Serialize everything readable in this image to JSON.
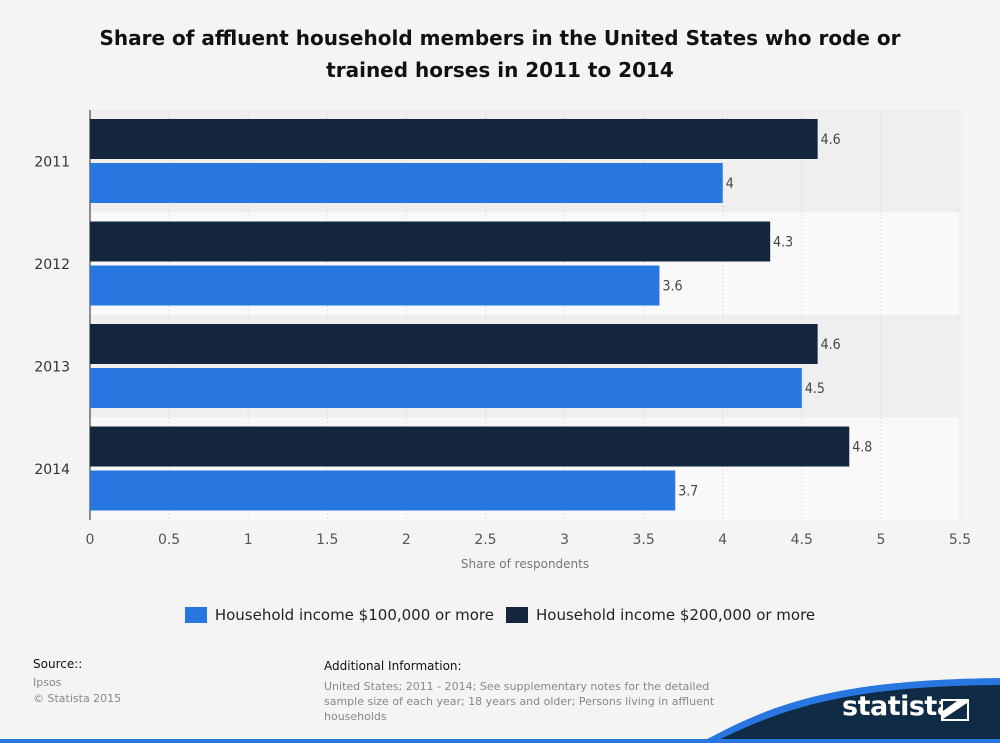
{
  "title": "Share of affluent household members in the United States who rode or trained horses in 2011 to 2014",
  "chart_data": {
    "type": "bar",
    "orientation": "horizontal",
    "categories": [
      "2011",
      "2012",
      "2013",
      "2014"
    ],
    "series": [
      {
        "name": "Household income $200,000 or more",
        "values": [
          4.6,
          4.3,
          4.6,
          4.8
        ],
        "color": "#13263e"
      },
      {
        "name": "Household income $100,000 or more",
        "values": [
          4.0,
          3.6,
          4.5,
          3.7
        ],
        "color": "#2877e0"
      }
    ],
    "xlabel": "Share of respondents",
    "ylabel": "",
    "xlim": [
      0,
      5.5
    ],
    "xticks": [
      "0",
      "0.5",
      "1",
      "1.5",
      "2",
      "2.5",
      "3",
      "3.5",
      "4",
      "4.5",
      "5",
      "5.5"
    ],
    "value_labels": [
      [
        "4.6",
        "4",
        "4.3",
        "3.6",
        "4.6",
        "4.5",
        "4.8",
        "3.7"
      ]
    ],
    "grid": "vertical dotted",
    "legend_placement": "bottom"
  },
  "legend": [
    {
      "label": "Household income $100,000 or more",
      "color": "#2877e0"
    },
    {
      "label": "Household income $200,000 or more",
      "color": "#13263e"
    }
  ],
  "source": {
    "heading": "Source::",
    "lines": [
      "Ipsos",
      "© Statista 2015"
    ]
  },
  "additional_info": {
    "heading": "Additional Information:",
    "text": "United States; 2011 - 2014; See supplementary notes for the detailed sample size of each year; 18 years and older; Persons living in affluent households"
  },
  "brand": {
    "name": "statista"
  }
}
